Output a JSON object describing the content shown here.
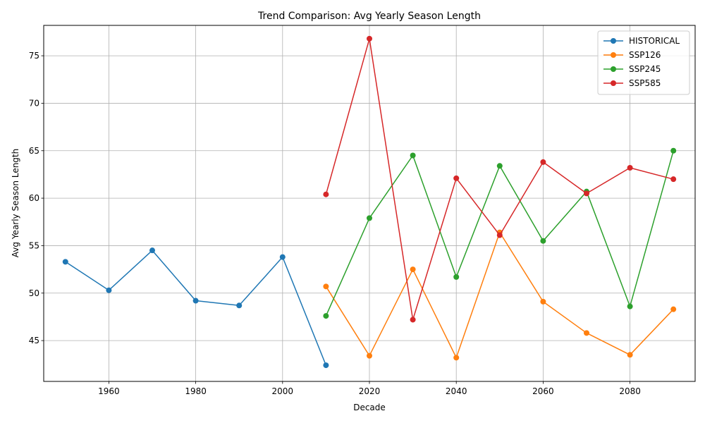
{
  "chart_data": {
    "type": "line",
    "title": "Trend Comparison: Avg Yearly Season Length",
    "xlabel": "Decade",
    "ylabel": "Avg Yearly Season Length",
    "xlim": [
      1945,
      2095
    ],
    "ylim": [
      40.7,
      78.2
    ],
    "xticks": [
      1960,
      1980,
      2000,
      2020,
      2040,
      2060,
      2080
    ],
    "yticks": [
      45,
      50,
      55,
      60,
      65,
      70,
      75
    ],
    "grid": true,
    "legend_position": "top-right",
    "series": [
      {
        "name": "HISTORICAL",
        "color": "#1f77b4",
        "x": [
          1950,
          1960,
          1970,
          1980,
          1990,
          2000,
          2010
        ],
        "y": [
          53.3,
          50.3,
          54.5,
          49.2,
          48.7,
          53.8,
          42.4
        ]
      },
      {
        "name": "SSP126",
        "color": "#ff7f0e",
        "x": [
          2010,
          2020,
          2030,
          2040,
          2050,
          2060,
          2070,
          2080,
          2090
        ],
        "y": [
          50.7,
          43.4,
          52.5,
          43.2,
          56.4,
          49.1,
          45.8,
          43.5,
          48.3
        ]
      },
      {
        "name": "SSP245",
        "color": "#2ca02c",
        "x": [
          2010,
          2020,
          2030,
          2040,
          2050,
          2060,
          2070,
          2080,
          2090
        ],
        "y": [
          47.6,
          57.9,
          64.5,
          51.7,
          63.4,
          55.5,
          60.7,
          48.6,
          65.0
        ]
      },
      {
        "name": "SSP585",
        "color": "#d62728",
        "x": [
          2010,
          2020,
          2030,
          2040,
          2050,
          2060,
          2070,
          2080,
          2090
        ],
        "y": [
          60.4,
          76.8,
          47.2,
          62.1,
          56.1,
          63.8,
          60.5,
          63.2,
          62.0
        ]
      }
    ]
  }
}
